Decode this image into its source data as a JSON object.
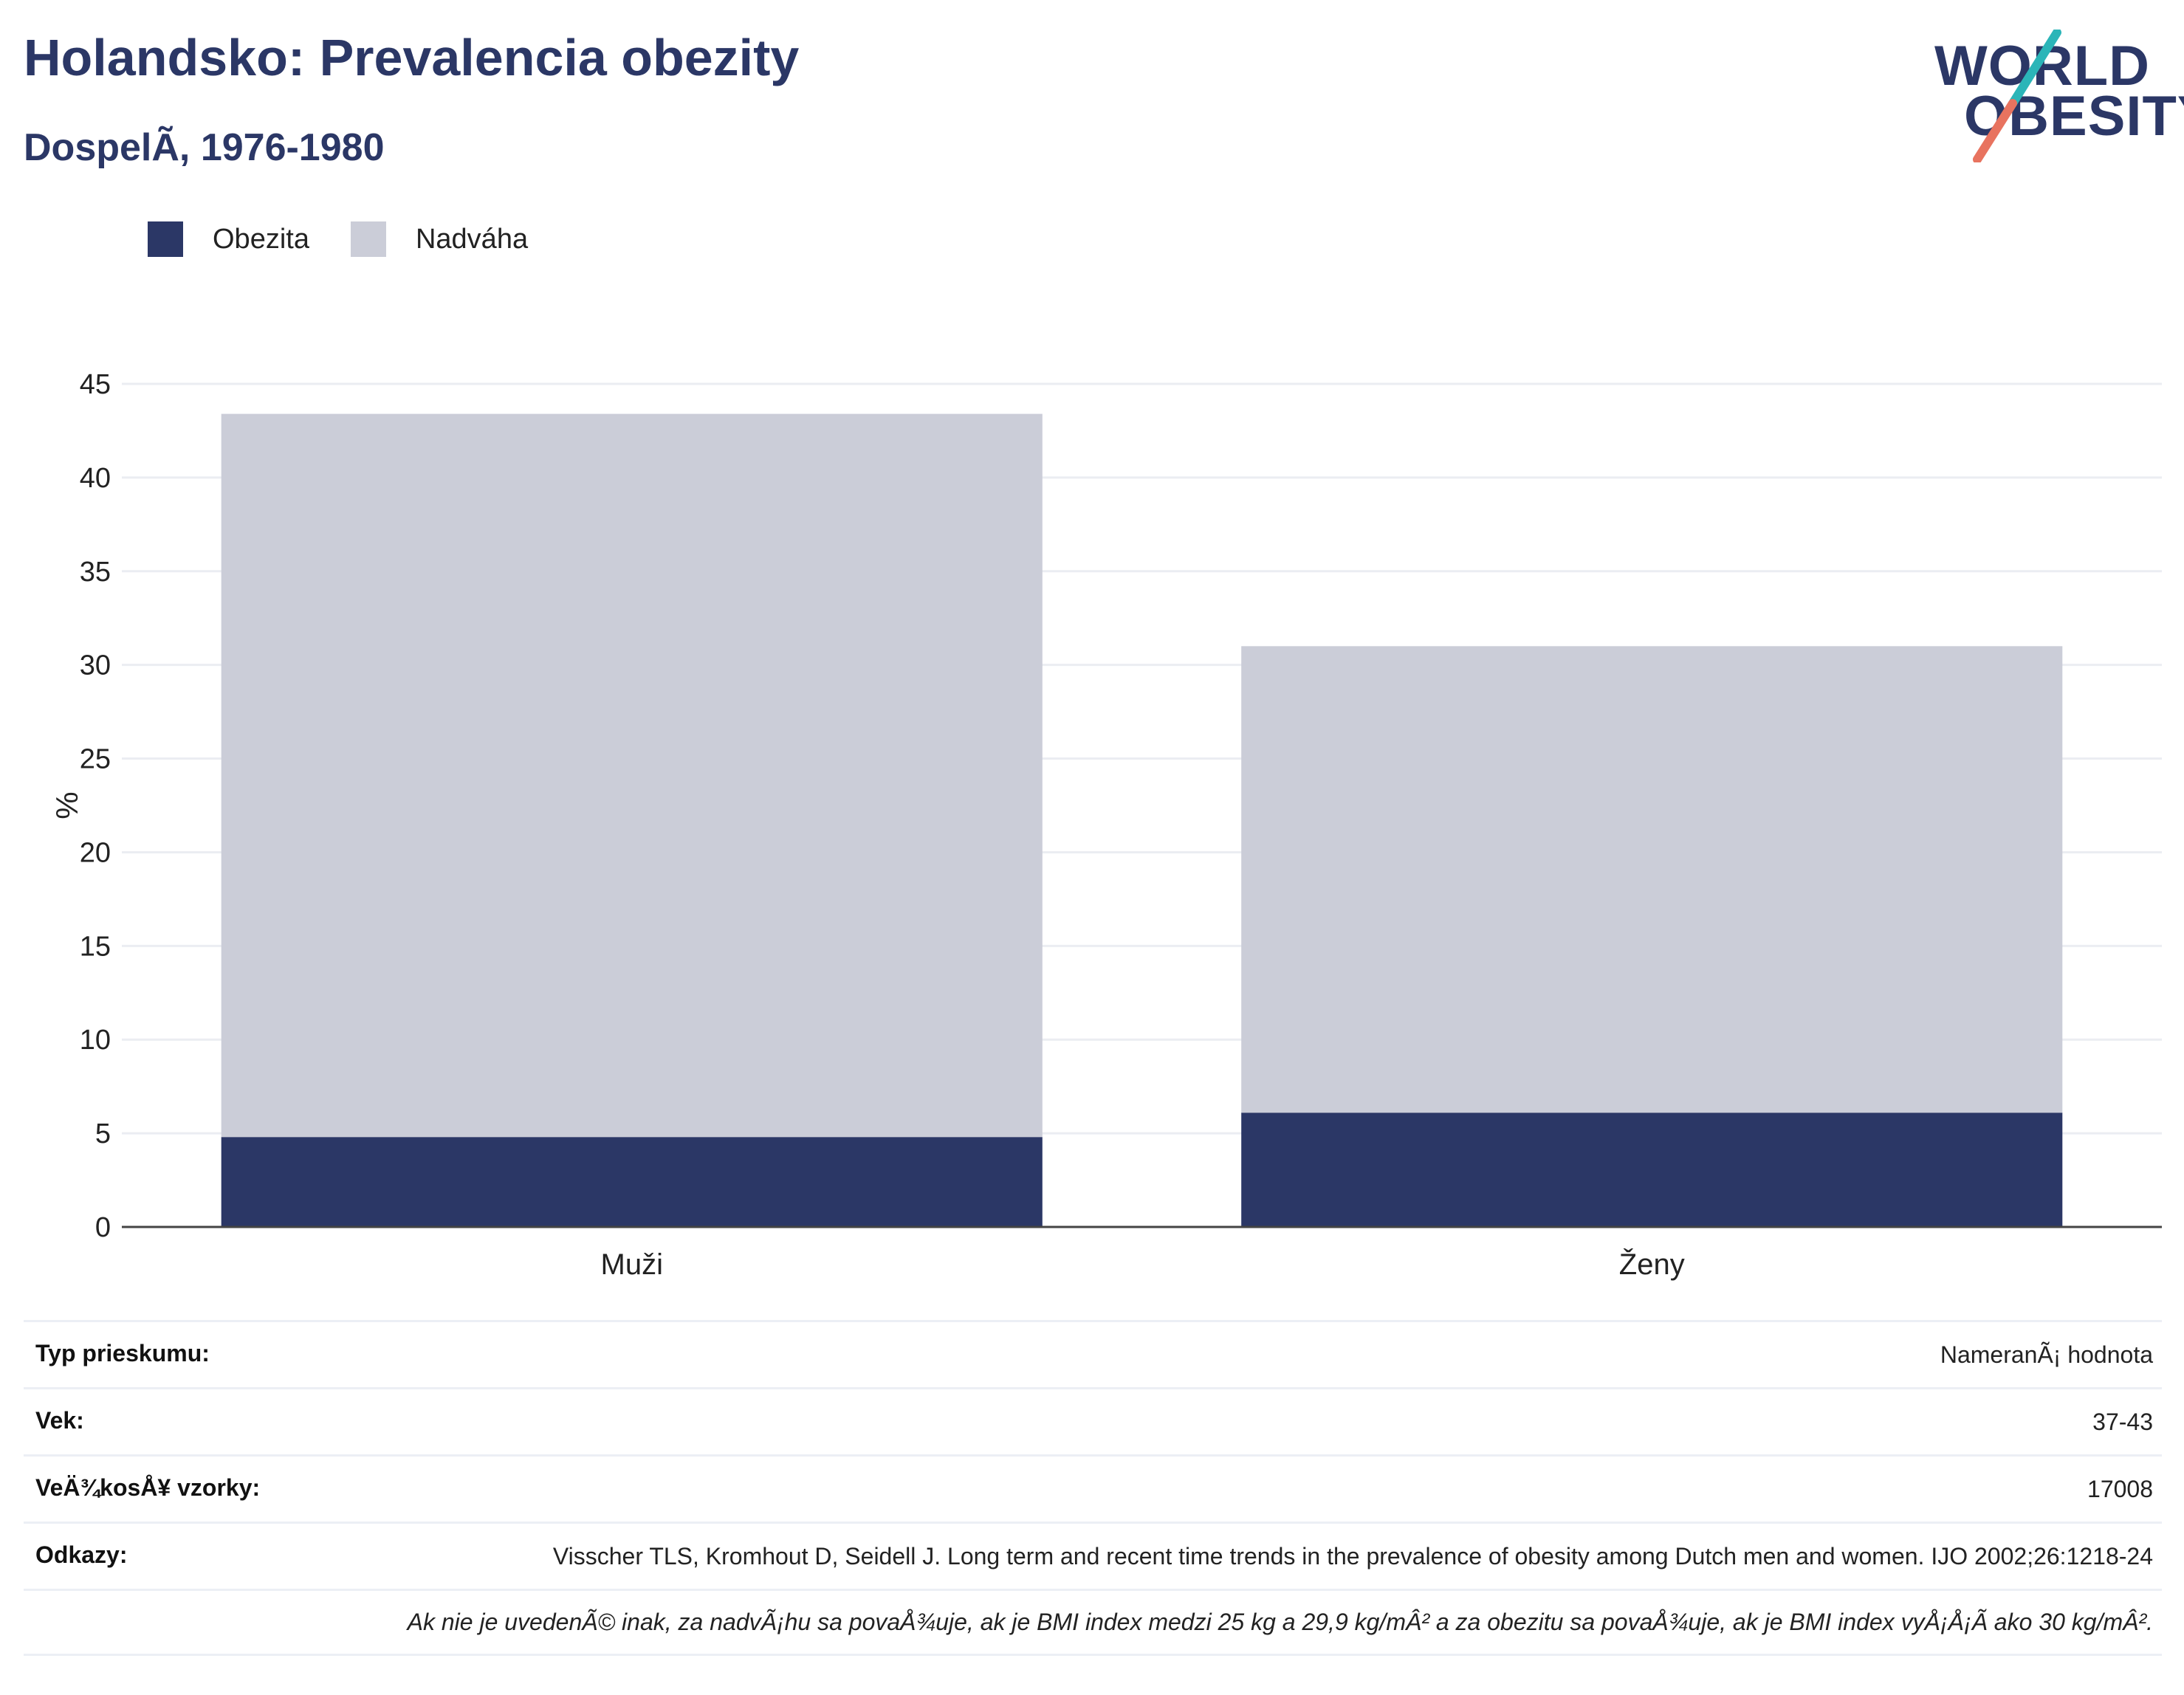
{
  "header": {
    "title": "Holandsko: Prevalencia obezity",
    "subtitle": "DospelÃ, 1976-1980"
  },
  "logo": {
    "line1": "WORLD",
    "line2": "OBESITY"
  },
  "colors": {
    "obesity": "#2b3766",
    "overweight": "#cbcdd8",
    "title": "#2b3766",
    "logo_teal": "#2bb5b8",
    "logo_coral": "#e8735f"
  },
  "legend": [
    {
      "label": "Obezita",
      "color": "#2b3766"
    },
    {
      "label": "Nadváha",
      "color": "#cbcdd8"
    }
  ],
  "chart_data": {
    "type": "bar",
    "stacked": true,
    "categories": [
      "Muži",
      "Ženy"
    ],
    "series": [
      {
        "name": "Obezita",
        "values": [
          4.8,
          6.1
        ]
      },
      {
        "name": "Nadváha",
        "values": [
          38.6,
          24.9
        ]
      }
    ],
    "ylabel": "%",
    "ylim": [
      0,
      45
    ],
    "yticks": [
      0,
      5,
      10,
      15,
      20,
      25,
      30,
      35,
      40,
      45
    ],
    "grid": true,
    "legend_position": "top-left"
  },
  "info": [
    {
      "key": "Typ prieskumu:",
      "value": "NameranÃ¡ hodnota"
    },
    {
      "key": "Vek:",
      "value": "37-43"
    },
    {
      "key": "VeÄ¾kosÅ¥ vzorky:",
      "value": "17008"
    },
    {
      "key": "Odkazy:",
      "value": "Visscher TLS, Kromhout D, Seidell J. Long term and recent time trends in the prevalence of obesity among Dutch men and women. IJO 2002;26:1218-24"
    }
  ],
  "footnote": "Ak nie je uvedenÃ© inak, za nadvÃ¡hu sa povaÅ¾uje, ak je BMI index medzi 25 kg a 29,9 kg/mÂ² a za obezitu sa povaÅ¾uje, ak je BMI index vyÅ¡Å¡Ã ako 30 kg/mÂ²."
}
